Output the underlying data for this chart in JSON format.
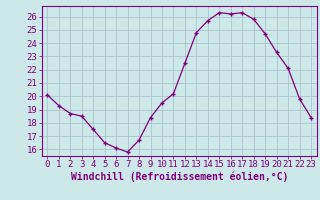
{
  "x": [
    0,
    1,
    2,
    3,
    4,
    5,
    6,
    7,
    8,
    9,
    10,
    11,
    12,
    13,
    14,
    15,
    16,
    17,
    18,
    19,
    20,
    21,
    22,
    23
  ],
  "y": [
    20.1,
    19.3,
    18.7,
    18.5,
    17.5,
    16.5,
    16.1,
    15.8,
    16.7,
    18.4,
    19.5,
    20.2,
    22.5,
    24.8,
    25.7,
    26.3,
    26.2,
    26.3,
    25.8,
    24.7,
    23.3,
    22.1,
    19.8,
    18.4
  ],
  "line_color": "#800080",
  "marker": "+",
  "bg_color": "#cce8e8",
  "grid_color": "#aabbcc",
  "title": "Windchill (Refroidissement éolien,°C)",
  "xlim": [
    -0.5,
    23.5
  ],
  "ylim": [
    15.5,
    26.8
  ],
  "yticks": [
    16,
    17,
    18,
    19,
    20,
    21,
    22,
    23,
    24,
    25,
    26
  ],
  "xticks": [
    0,
    1,
    2,
    3,
    4,
    5,
    6,
    7,
    8,
    9,
    10,
    11,
    12,
    13,
    14,
    15,
    16,
    17,
    18,
    19,
    20,
    21,
    22,
    23
  ],
  "xlabel_color": "#800080",
  "tick_color": "#800080",
  "axis_color": "#800080",
  "tick_fontsize": 6.5,
  "ylabel_fontsize": 7.0,
  "xlabel_fontsize": 7.0
}
